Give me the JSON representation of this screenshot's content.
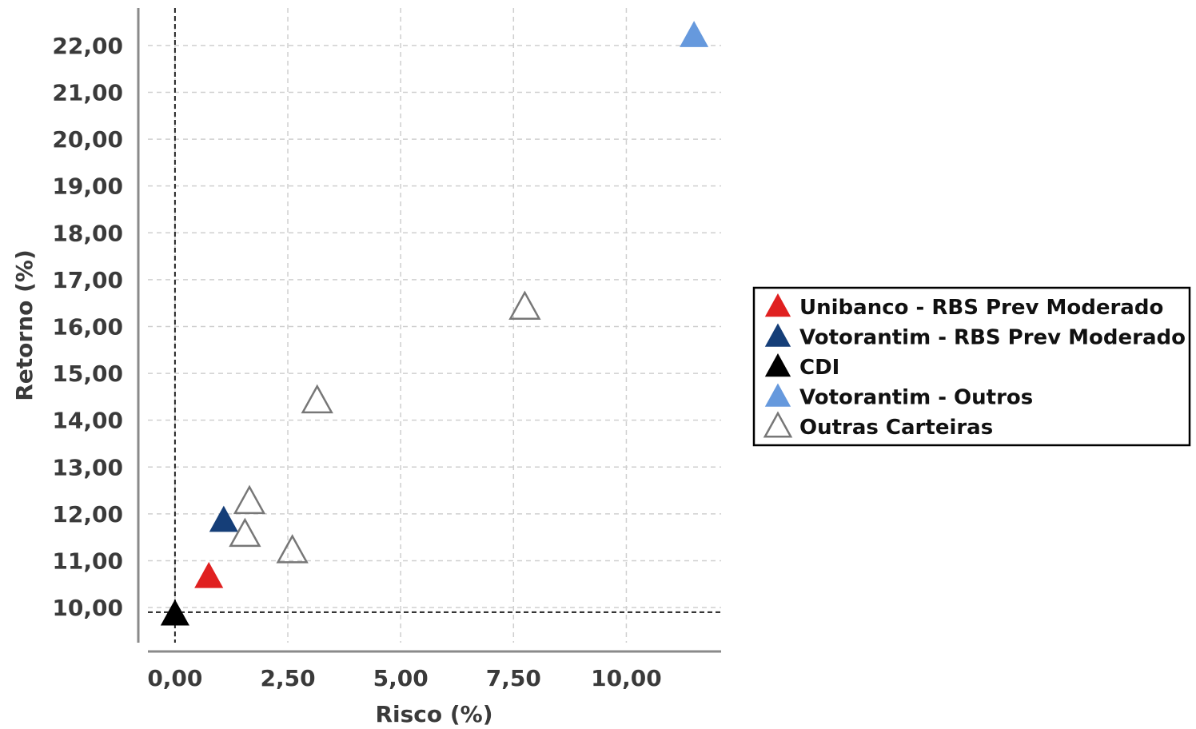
{
  "chart_data": {
    "type": "scatter",
    "xlabel": "Risco (%)",
    "ylabel": "Retorno (%)",
    "xlim": [
      -0.6,
      12.1
    ],
    "ylim": [
      9.25,
      22.8
    ],
    "x_ticks": [
      0,
      2.5,
      5,
      7.5,
      10
    ],
    "x_tick_labels": [
      "0,00",
      "2,50",
      "5,00",
      "7,50",
      "10,00"
    ],
    "y_ticks": [
      10,
      11,
      12,
      13,
      14,
      15,
      16,
      17,
      18,
      19,
      20,
      21,
      22
    ],
    "y_tick_labels": [
      "10,00",
      "11,00",
      "12,00",
      "13,00",
      "14,00",
      "15,00",
      "16,00",
      "17,00",
      "18,00",
      "19,00",
      "20,00",
      "21,00",
      "22,00"
    ],
    "grid": true,
    "reference_lines": {
      "x": 0,
      "y": 9.9
    },
    "legend_position": "right",
    "series": [
      {
        "name": "Unibanco - RBS Prev Moderado",
        "color": "#e02020",
        "marker": "filled-triangle",
        "points": [
          {
            "x": 0.75,
            "y": 10.65
          }
        ]
      },
      {
        "name": "Votorantim - RBS Prev Moderado",
        "color": "#153e78",
        "marker": "filled-triangle",
        "points": [
          {
            "x": 1.08,
            "y": 11.85
          }
        ]
      },
      {
        "name": "CDI",
        "color": "#000000",
        "marker": "filled-triangle",
        "points": [
          {
            "x": 0.0,
            "y": 9.85
          }
        ]
      },
      {
        "name": "Votorantim - Outros",
        "color": "#6699dd",
        "marker": "filled-triangle",
        "points": [
          {
            "x": 11.5,
            "y": 22.2
          }
        ]
      },
      {
        "name": "Outras Carteiras",
        "color": "#777777",
        "marker": "hollow-triangle",
        "points": [
          {
            "x": 1.65,
            "y": 12.25
          },
          {
            "x": 1.55,
            "y": 11.55
          },
          {
            "x": 2.6,
            "y": 11.2
          },
          {
            "x": 3.15,
            "y": 14.4
          },
          {
            "x": 7.75,
            "y": 16.4
          }
        ]
      }
    ]
  }
}
